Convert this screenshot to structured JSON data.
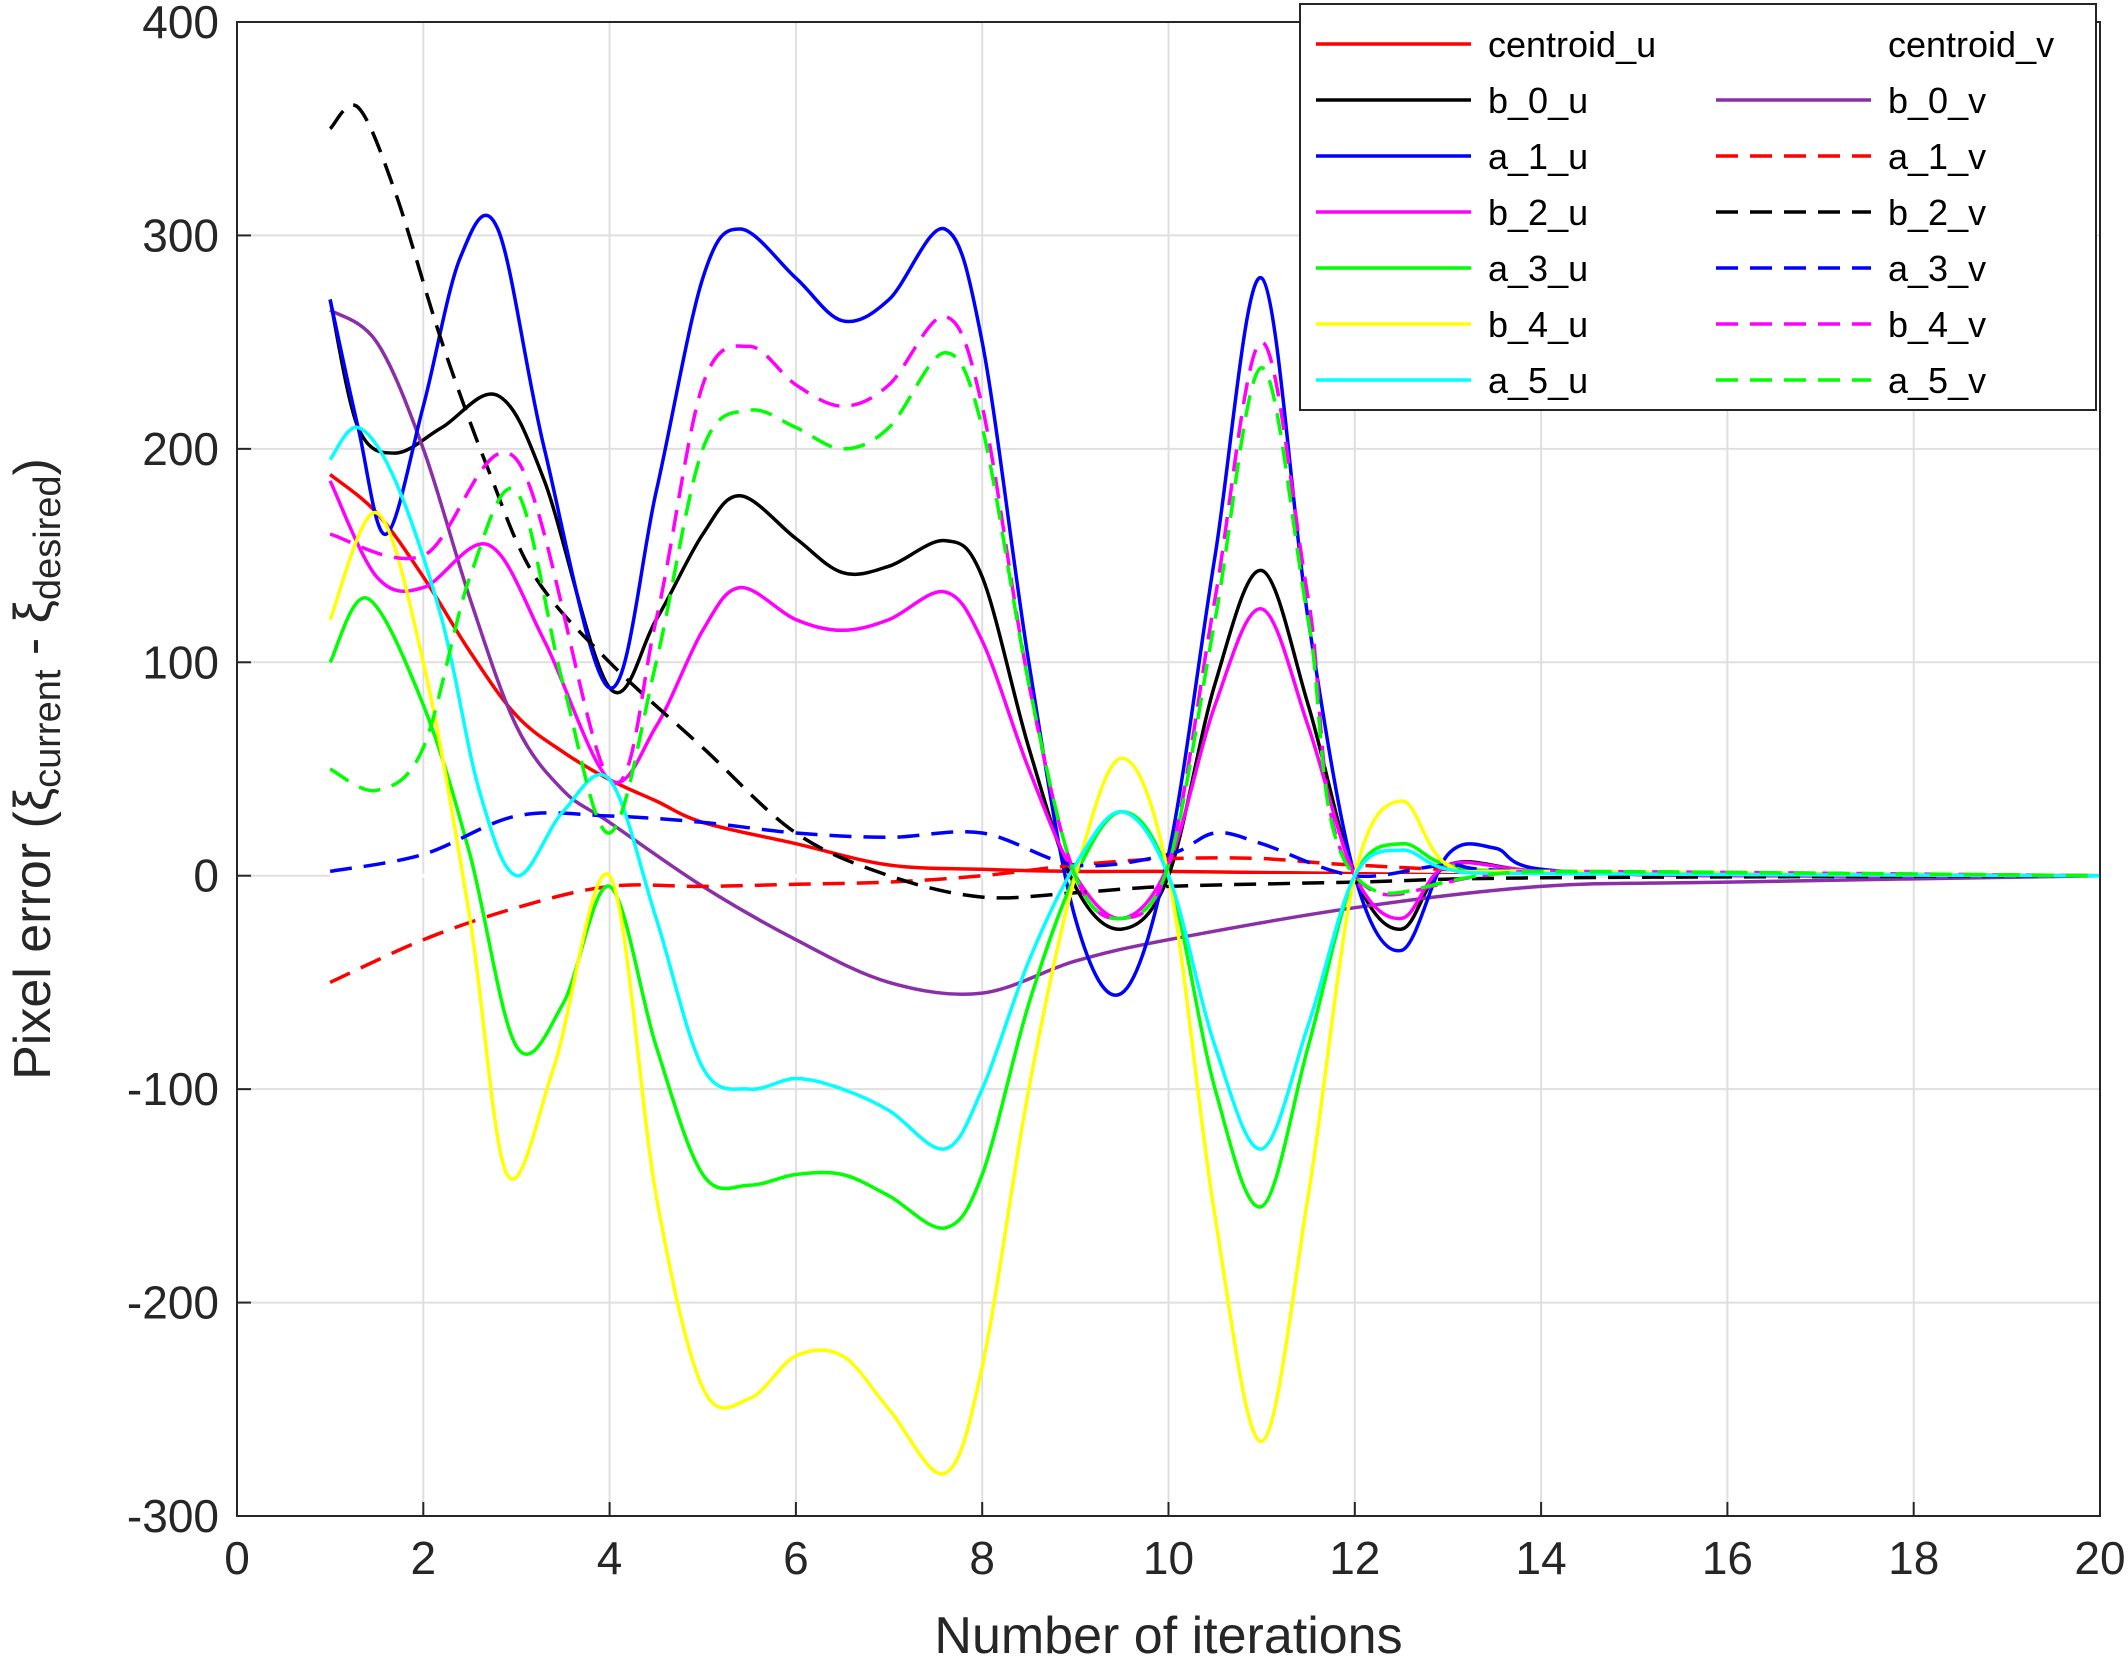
{
  "chart_data": {
    "type": "line",
    "xlabel": "Number of iterations",
    "ylabel": {
      "prefix": "Pixel error (",
      "xi1": "ξ",
      "sub1": "current",
      "minus": " - ",
      "xi2": "ξ",
      "sub2": "desired",
      "suffix": ")"
    },
    "xlim": [
      0,
      20
    ],
    "ylim": [
      -300,
      400
    ],
    "xticks": [
      "0",
      "2",
      "4",
      "6",
      "8",
      "10",
      "12",
      "14",
      "16",
      "18",
      "20"
    ],
    "yticks": [
      "400",
      "300",
      "200",
      "100",
      "0",
      "-100",
      "-200",
      "-300"
    ],
    "grid": true,
    "legend_position": "top-right",
    "legend_columns": 2,
    "series": [
      {
        "name": "centroid_u",
        "color": "#ff0000",
        "dash": "solid",
        "x": [
          1,
          1.5,
          2,
          2.5,
          3,
          3.5,
          4,
          4.5,
          5,
          6,
          7,
          8,
          9,
          10,
          12,
          14,
          16,
          20
        ],
        "y": [
          188,
          170,
          140,
          105,
          75,
          58,
          45,
          35,
          25,
          15,
          5,
          3,
          2,
          2,
          1,
          0,
          0,
          0
        ]
      },
      {
        "name": "centroid_v",
        "color": "#ffffff",
        "dash": "solid",
        "x": [
          1,
          20
        ],
        "y": [
          0,
          0
        ]
      },
      {
        "name": "b_0_u",
        "color": "#000000",
        "dash": "solid",
        "x": [
          1,
          1.3,
          1.7,
          2.2,
          2.8,
          3.3,
          4,
          4.5,
          5,
          5.4,
          6,
          6.5,
          7,
          7.6,
          8,
          8.5,
          9,
          9.5,
          10,
          10.5,
          11,
          11.5,
          12,
          12.5,
          13,
          14,
          16,
          20
        ],
        "y": [
          270,
          210,
          198,
          210,
          225,
          185,
          88,
          120,
          160,
          178,
          158,
          142,
          145,
          157,
          140,
          60,
          -5,
          -25,
          0,
          90,
          143,
          80,
          0,
          -25,
          5,
          2,
          0,
          0
        ]
      },
      {
        "name": "b_0_v",
        "color": "#8b2fa8",
        "dash": "solid",
        "x": [
          1,
          1.5,
          2,
          2.5,
          3,
          3.5,
          4,
          5,
          6,
          7,
          8,
          9,
          10,
          12,
          14,
          16,
          20
        ],
        "y": [
          265,
          250,
          200,
          130,
          70,
          40,
          25,
          -5,
          -30,
          -50,
          -55,
          -40,
          -30,
          -15,
          -5,
          -3,
          0
        ]
      },
      {
        "name": "a_1_u",
        "color": "#0000ff",
        "dash": "solid",
        "x": [
          1,
          1.3,
          1.6,
          2,
          2.4,
          2.8,
          3.3,
          4,
          4.5,
          5,
          5.4,
          6,
          6.5,
          7,
          7.6,
          8,
          8.5,
          9,
          9.5,
          10,
          10.5,
          11,
          11.5,
          12,
          12.5,
          13,
          13.5,
          14,
          16,
          20
        ],
        "y": [
          270,
          210,
          160,
          220,
          290,
          303,
          200,
          88,
          180,
          280,
          303,
          280,
          260,
          270,
          303,
          250,
          100,
          -20,
          -55,
          10,
          150,
          280,
          120,
          0,
          -35,
          10,
          13,
          3,
          0,
          0
        ]
      },
      {
        "name": "a_1_v",
        "color": "#ff0000",
        "dash": "dashed",
        "x": [
          1,
          2,
          3,
          4,
          5,
          6,
          7,
          8,
          9,
          10,
          11,
          12,
          14,
          20
        ],
        "y": [
          -50,
          -30,
          -15,
          -5,
          -5,
          -4,
          -3,
          0,
          5,
          8,
          8,
          5,
          2,
          0
        ]
      },
      {
        "name": "b_2_u",
        "color": "#ff00ff",
        "dash": "solid",
        "x": [
          1,
          1.5,
          2,
          2.7,
          3.3,
          4,
          4.5,
          5,
          5.4,
          6,
          6.5,
          7,
          7.6,
          8,
          8.5,
          9,
          9.5,
          10,
          10.5,
          11,
          11.5,
          12,
          12.5,
          13,
          14,
          16,
          20
        ],
        "y": [
          185,
          140,
          135,
          155,
          110,
          45,
          70,
          115,
          135,
          120,
          115,
          120,
          133,
          110,
          50,
          0,
          -20,
          5,
          80,
          125,
          70,
          0,
          -20,
          5,
          2,
          0,
          0
        ]
      },
      {
        "name": "b_2_v",
        "color": "#000000",
        "dash": "dashed",
        "x": [
          1,
          1.3,
          1.7,
          2.2,
          2.7,
          3.2,
          4,
          5,
          6,
          7,
          8,
          9,
          10,
          12,
          14,
          20
        ],
        "y": [
          350,
          360,
          320,
          250,
          190,
          140,
          100,
          60,
          20,
          0,
          -10,
          -8,
          -5,
          -3,
          -1,
          0
        ]
      },
      {
        "name": "a_3_u",
        "color": "#00ff00",
        "dash": "solid",
        "x": [
          1,
          1.4,
          2,
          2.5,
          3,
          3.5,
          4,
          4.5,
          5,
          5.5,
          6,
          6.5,
          7,
          7.6,
          8,
          8.5,
          9,
          9.5,
          10,
          10.5,
          11,
          11.5,
          12,
          12.5,
          13,
          14,
          20
        ],
        "y": [
          100,
          130,
          80,
          10,
          -80,
          -60,
          -5,
          -80,
          -140,
          -145,
          -140,
          -140,
          -150,
          -165,
          -140,
          -60,
          0,
          30,
          0,
          -100,
          -155,
          -80,
          0,
          15,
          5,
          2,
          0
        ]
      },
      {
        "name": "a_3_v",
        "color": "#0000ff",
        "dash": "dashed",
        "x": [
          1,
          2,
          3,
          4,
          5,
          6,
          7,
          8,
          9,
          10,
          10.5,
          11,
          12,
          13,
          14,
          20
        ],
        "y": [
          2,
          10,
          28,
          28,
          25,
          20,
          18,
          20,
          5,
          10,
          20,
          15,
          0,
          5,
          2,
          0
        ]
      },
      {
        "name": "b_4_u",
        "color": "#ffff00",
        "dash": "solid",
        "x": [
          1,
          1.5,
          2,
          2.5,
          2.9,
          3.4,
          4,
          4.5,
          5,
          5.5,
          6,
          6.5,
          7,
          7.6,
          8,
          8.5,
          9,
          9.5,
          10,
          10.5,
          11,
          11.5,
          12,
          12.5,
          13,
          14,
          20
        ],
        "y": [
          120,
          170,
          100,
          -20,
          -140,
          -90,
          0,
          -150,
          -240,
          -245,
          -225,
          -225,
          -250,
          -280,
          -230,
          -100,
          0,
          55,
          0,
          -160,
          -265,
          -150,
          0,
          35,
          5,
          2,
          0
        ]
      },
      {
        "name": "b_4_v",
        "color": "#ff00ff",
        "dash": "dashed",
        "x": [
          1,
          2,
          3,
          4,
          4.5,
          5,
          5.5,
          6,
          6.5,
          7,
          7.6,
          8,
          8.5,
          9,
          9.5,
          10,
          10.5,
          11,
          11.5,
          12,
          14,
          20
        ],
        "y": [
          160,
          150,
          195,
          45,
          120,
          230,
          248,
          230,
          220,
          230,
          262,
          220,
          90,
          0,
          -20,
          5,
          130,
          250,
          130,
          0,
          2,
          0
        ]
      },
      {
        "name": "a_5_u",
        "color": "#00ffff",
        "dash": "solid",
        "x": [
          1,
          1.3,
          1.7,
          2.2,
          2.6,
          3,
          3.5,
          4,
          4.5,
          5,
          5.5,
          6,
          6.5,
          7,
          7.6,
          8,
          8.5,
          9,
          9.5,
          10,
          10.5,
          11,
          11.5,
          12,
          12.5,
          13,
          14,
          20
        ],
        "y": [
          195,
          210,
          185,
          120,
          40,
          0,
          30,
          45,
          -20,
          -90,
          -100,
          -95,
          -100,
          -110,
          -128,
          -100,
          -40,
          5,
          30,
          0,
          -80,
          -128,
          -70,
          0,
          12,
          3,
          1,
          0
        ]
      },
      {
        "name": "a_5_v",
        "color": "#00ff00",
        "dash": "dashed",
        "x": [
          1,
          1.5,
          2,
          2.5,
          3,
          3.5,
          4,
          4.5,
          5,
          5.5,
          6,
          6.5,
          7,
          7.6,
          8,
          8.5,
          9,
          9.5,
          10,
          10.5,
          11,
          11.5,
          12,
          14,
          20
        ],
        "y": [
          50,
          40,
          60,
          140,
          180,
          90,
          20,
          100,
          200,
          218,
          210,
          200,
          210,
          245,
          210,
          90,
          0,
          -20,
          5,
          120,
          238,
          120,
          0,
          2,
          0
        ]
      }
    ]
  }
}
